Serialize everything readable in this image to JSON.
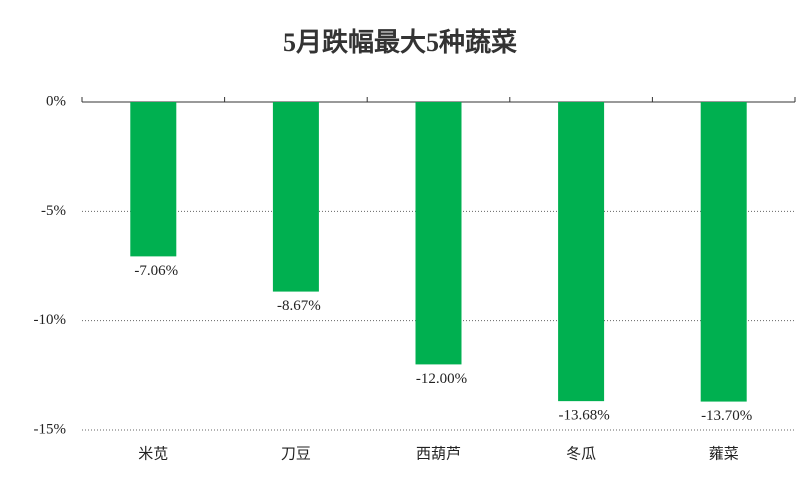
{
  "chart_data": {
    "type": "bar",
    "title": "5月跌幅最大5种蔬菜",
    "categories": [
      "米苋",
      "刀豆",
      "西葫芦",
      "冬瓜",
      "蕹菜"
    ],
    "values": [
      -7.06,
      -8.67,
      -12.0,
      -13.68,
      -13.7
    ],
    "value_labels": [
      "-7.06%",
      "-8.67%",
      "-12.00%",
      "-13.68%",
      "-13.70%"
    ],
    "color": "#00b050",
    "ylim": [
      -15,
      0
    ],
    "yticks": [
      {
        "value": 0,
        "label": "0%"
      },
      {
        "value": -5,
        "label": "-5%"
      },
      {
        "value": -10,
        "label": "-10%"
      },
      {
        "value": -15,
        "label": "-15%"
      }
    ],
    "grid": true
  }
}
